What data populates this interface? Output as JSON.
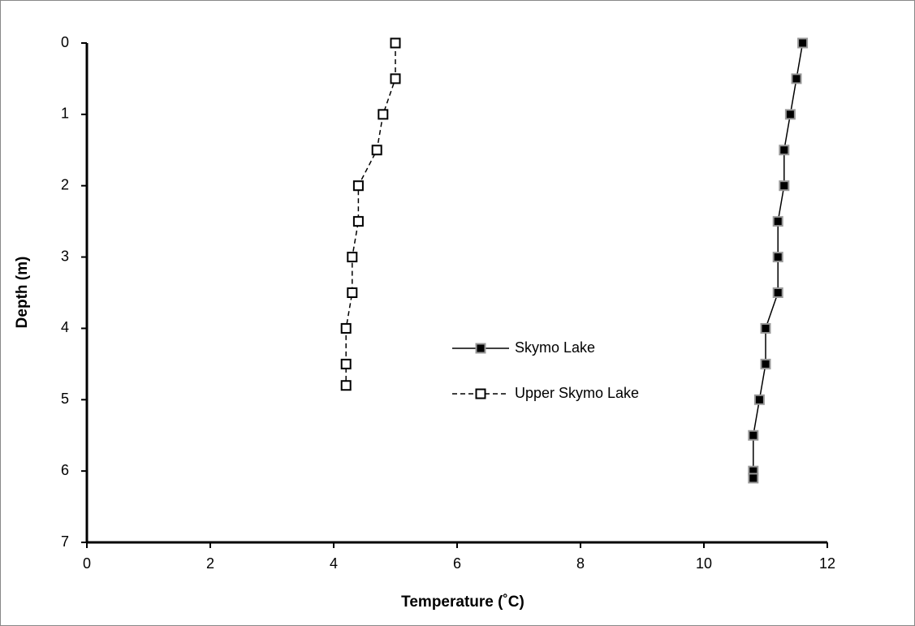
{
  "chart_data": {
    "type": "line",
    "x_label": "Temperature (˚C)",
    "y_label": "Depth (m)",
    "xlim": [
      0,
      12
    ],
    "xticks": [
      0,
      2,
      4,
      6,
      8,
      10,
      12
    ],
    "ylim": [
      0,
      7
    ],
    "yticks": [
      0,
      1,
      2,
      3,
      4,
      5,
      6,
      7
    ],
    "y_inverted": true,
    "grid": false,
    "legend": "center",
    "series": [
      {
        "name": "Skymo Lake",
        "color": "#000000",
        "marker_fill": "#000000",
        "marker_edge": "#999999",
        "dashed": false,
        "x": [
          11.6,
          11.5,
          11.4,
          11.3,
          11.3,
          11.2,
          11.2,
          11.2,
          11.0,
          11.0,
          10.9,
          10.8,
          10.8,
          10.8
        ],
        "values": [
          0,
          0.5,
          1,
          1.5,
          2,
          2.5,
          3,
          3.5,
          4,
          4.5,
          5,
          5.5,
          6,
          6.1
        ]
      },
      {
        "name": "Upper Skymo Lake",
        "color": "#000000",
        "marker_fill": "#ffffff",
        "marker_edge": "#000000",
        "dashed": true,
        "x": [
          5.0,
          5.0,
          4.8,
          4.7,
          4.4,
          4.4,
          4.3,
          4.3,
          4.2,
          4.2,
          4.2
        ],
        "values": [
          0,
          0.5,
          1,
          1.5,
          2,
          2.5,
          3,
          3.5,
          4,
          4.5,
          4.8
        ]
      }
    ]
  }
}
